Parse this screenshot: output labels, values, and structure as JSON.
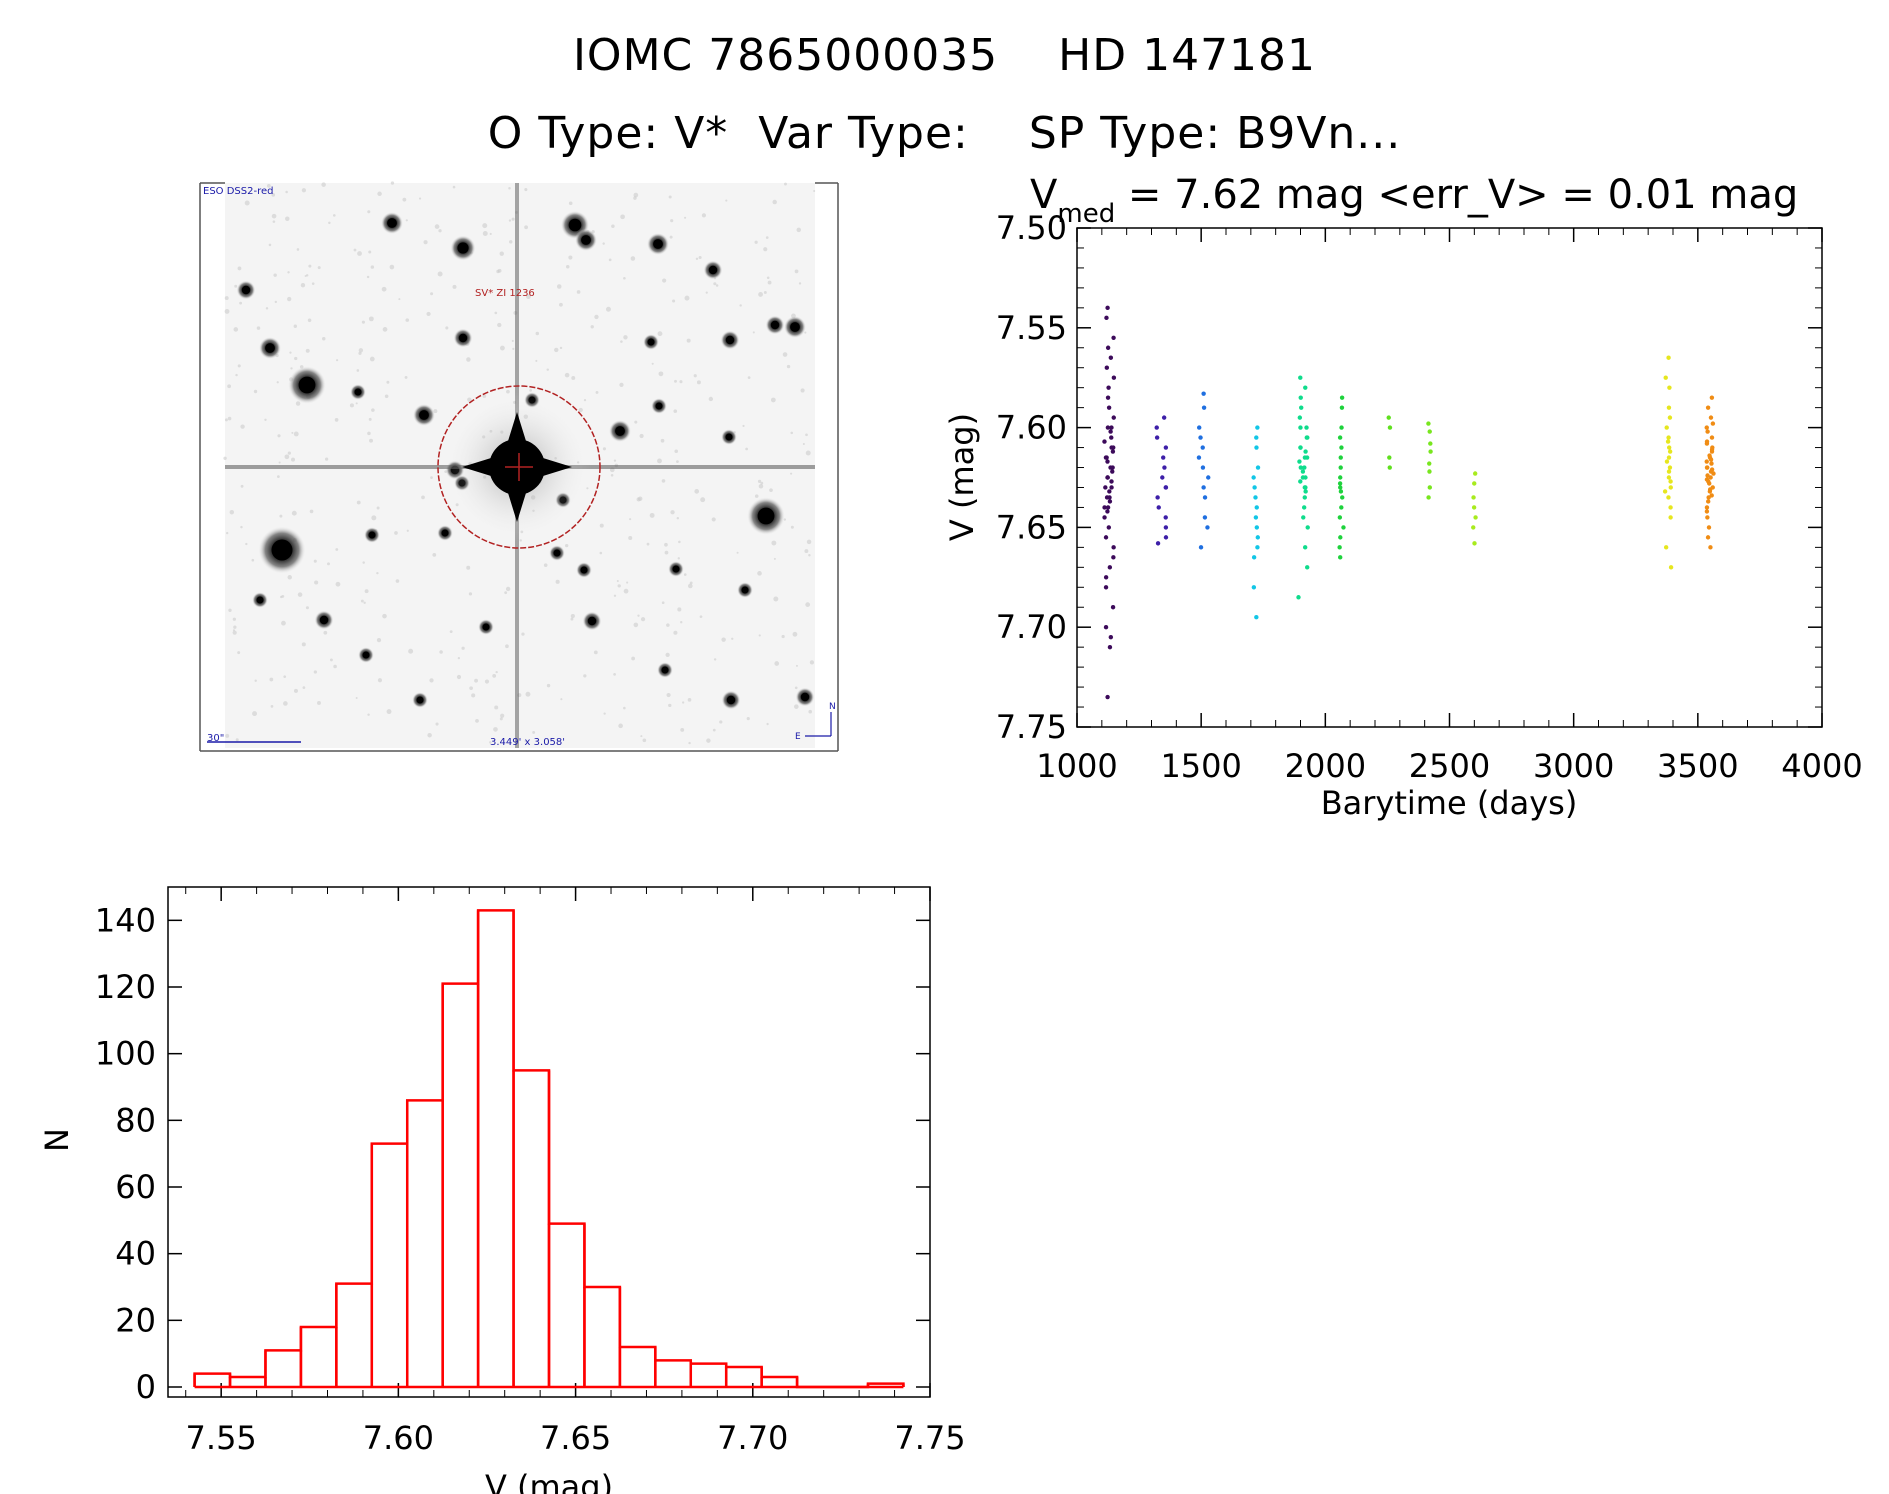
{
  "header": {
    "title_line1": "IOMC 7865000035    HD 147181",
    "title_line2": "O Type: V*  Var Type:    SP Type: B9Vn..."
  },
  "sky_image": {
    "survey_label": "ESO DSS2-red",
    "target_label": "SV* ZI 1236",
    "scale_label": "30\"",
    "fov_label": "3.449' x 3.058'",
    "north_label": "N",
    "east_label": "E",
    "circle_color": "#b22222",
    "label_color": "#b22222",
    "annotation_color": "#1a1aa8"
  },
  "chart_data": [
    {
      "type": "scatter",
      "title_main": "V",
      "title_sub": "med",
      "title_rest": " = 7.62 mag <err_V> = 0.01 mag",
      "xlabel": "Barytime (days)",
      "ylabel": "V (mag)",
      "xlim": [
        1000,
        4000
      ],
      "ylim": [
        7.75,
        7.5
      ],
      "y_inverted": true,
      "xticks": [
        1000,
        1500,
        2000,
        2500,
        3000,
        3500,
        4000
      ],
      "yticks": [
        7.5,
        7.55,
        7.6,
        7.65,
        7.7,
        7.75
      ],
      "ytick_labels": [
        "7.50",
        "7.55",
        "7.60",
        "7.65",
        "7.70",
        "7.75"
      ],
      "series": [
        {
          "color": "#3c0a5a",
          "x_center": 1130,
          "x_spread": 40,
          "y_values": [
            7.54,
            7.545,
            7.555,
            7.56,
            7.565,
            7.57,
            7.575,
            7.58,
            7.585,
            7.59,
            7.595,
            7.6,
            7.6,
            7.602,
            7.605,
            7.607,
            7.61,
            7.61,
            7.612,
            7.615,
            7.615,
            7.617,
            7.62,
            7.62,
            7.622,
            7.625,
            7.625,
            7.627,
            7.63,
            7.63,
            7.632,
            7.635,
            7.635,
            7.637,
            7.64,
            7.64,
            7.642,
            7.645,
            7.65,
            7.655,
            7.66,
            7.665,
            7.67,
            7.675,
            7.68,
            7.69,
            7.7,
            7.705,
            7.71,
            7.735
          ]
        },
        {
          "color": "#3d1fa8",
          "x_center": 1340,
          "x_spread": 40,
          "y_values": [
            7.595,
            7.6,
            7.605,
            7.61,
            7.615,
            7.62,
            7.625,
            7.63,
            7.63,
            7.635,
            7.64,
            7.645,
            7.65,
            7.655,
            7.658
          ]
        },
        {
          "color": "#1f6fe0",
          "x_center": 1510,
          "x_spread": 40,
          "y_values": [
            7.583,
            7.59,
            7.6,
            7.605,
            7.61,
            7.615,
            7.62,
            7.625,
            7.63,
            7.635,
            7.645,
            7.65,
            7.66
          ]
        },
        {
          "color": "#12c6e6",
          "x_center": 1720,
          "x_spread": 20,
          "y_values": [
            7.6,
            7.605,
            7.61,
            7.62,
            7.625,
            7.63,
            7.635,
            7.64,
            7.645,
            7.65,
            7.655,
            7.66,
            7.665,
            7.68,
            7.695
          ]
        },
        {
          "color": "#0fdc8c",
          "x_center": 1910,
          "x_spread": 40,
          "y_values": [
            7.575,
            7.58,
            7.585,
            7.59,
            7.595,
            7.6,
            7.6,
            7.605,
            7.605,
            7.61,
            7.61,
            7.612,
            7.615,
            7.615,
            7.617,
            7.62,
            7.62,
            7.622,
            7.625,
            7.625,
            7.627,
            7.63,
            7.63,
            7.632,
            7.635,
            7.64,
            7.645,
            7.65,
            7.66,
            7.67,
            7.685
          ]
        },
        {
          "color": "#1ed23c",
          "x_center": 2070,
          "x_spread": 25,
          "y_values": [
            7.585,
            7.59,
            7.6,
            7.605,
            7.61,
            7.615,
            7.62,
            7.625,
            7.628,
            7.63,
            7.632,
            7.635,
            7.64,
            7.645,
            7.65,
            7.655,
            7.66,
            7.665
          ]
        },
        {
          "color": "#5fe01e",
          "x_center": 2260,
          "x_spread": 10,
          "y_values": [
            7.595,
            7.6,
            7.615,
            7.62
          ]
        },
        {
          "color": "#78e61e",
          "x_center": 2420,
          "x_spread": 10,
          "y_values": [
            7.598,
            7.602,
            7.608,
            7.612,
            7.618,
            7.622,
            7.63,
            7.635
          ]
        },
        {
          "color": "#a8eb1e",
          "x_center": 2600,
          "x_spread": 10,
          "y_values": [
            7.623,
            7.628,
            7.635,
            7.64,
            7.645,
            7.65,
            7.658
          ]
        },
        {
          "color": "#e6e61e",
          "x_center": 3380,
          "x_spread": 25,
          "y_values": [
            7.565,
            7.575,
            7.58,
            7.59,
            7.595,
            7.6,
            7.605,
            7.607,
            7.61,
            7.612,
            7.615,
            7.617,
            7.62,
            7.622,
            7.625,
            7.627,
            7.63,
            7.632,
            7.635,
            7.64,
            7.645,
            7.66,
            7.67
          ]
        },
        {
          "color": "#f08c14",
          "x_center": 3550,
          "x_spread": 30,
          "y_values": [
            7.585,
            7.59,
            7.595,
            7.598,
            7.6,
            7.602,
            7.605,
            7.607,
            7.608,
            7.61,
            7.611,
            7.612,
            7.614,
            7.615,
            7.616,
            7.617,
            7.618,
            7.62,
            7.62,
            7.621,
            7.622,
            7.623,
            7.624,
            7.625,
            7.626,
            7.627,
            7.628,
            7.63,
            7.631,
            7.632,
            7.634,
            7.635,
            7.637,
            7.64,
            7.642,
            7.645,
            7.65,
            7.655,
            7.66
          ]
        }
      ]
    },
    {
      "type": "bar",
      "style": "histogram",
      "xlabel": "V (mag)",
      "ylabel": "N",
      "xlim": [
        7.535,
        7.75
      ],
      "ylim": [
        -3,
        150
      ],
      "xticks": [
        7.55,
        7.6,
        7.65,
        7.7,
        7.75
      ],
      "xtick_labels": [
        "7.55",
        "7.60",
        "7.65",
        "7.70",
        "7.75"
      ],
      "yticks": [
        0,
        20,
        40,
        60,
        80,
        100,
        120,
        140
      ],
      "bin_edges": [
        7.5425,
        7.5525,
        7.5625,
        7.5725,
        7.5825,
        7.5925,
        7.6025,
        7.6125,
        7.6225,
        7.6325,
        7.6425,
        7.6525,
        7.6625,
        7.6725,
        7.6825,
        7.6925,
        7.7025,
        7.7125,
        7.7225,
        7.7325,
        7.7425
      ],
      "values": [
        4,
        3,
        11,
        18,
        31,
        73,
        86,
        121,
        143,
        95,
        49,
        30,
        12,
        8,
        7,
        6,
        3,
        0,
        0,
        1
      ],
      "bar_color": "#ff0000"
    }
  ]
}
